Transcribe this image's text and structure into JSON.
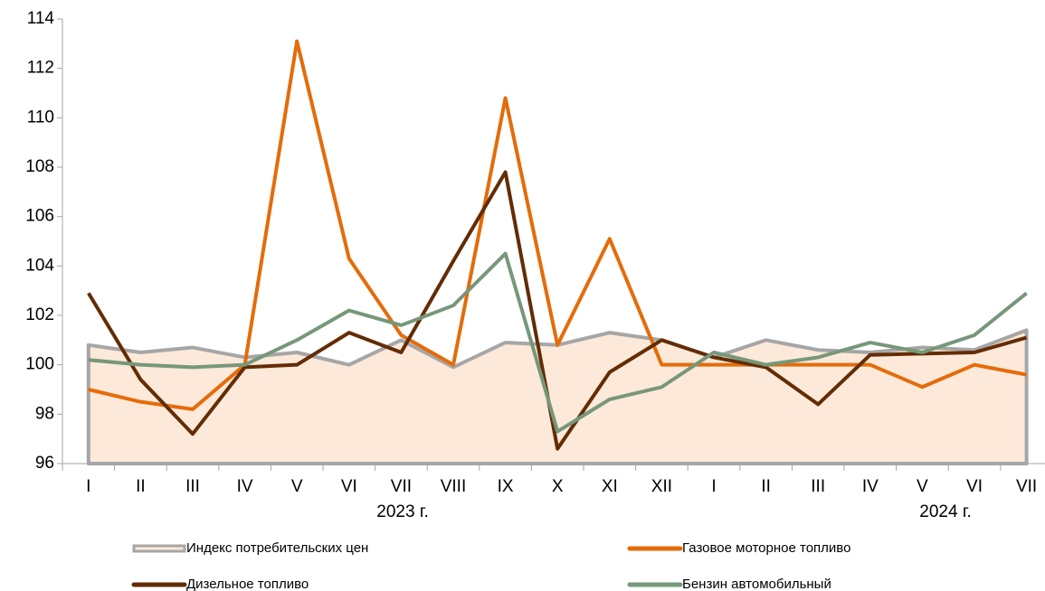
{
  "chart_data": {
    "type": "line",
    "categories": [
      "I",
      "II",
      "III",
      "IV",
      "V",
      "VI",
      "VII",
      "VIII",
      "IX",
      "X",
      "XI",
      "XII",
      "I",
      "II",
      "III",
      "IV",
      "V",
      "VI",
      "VII"
    ],
    "year_labels": [
      "2023 г.",
      "2024 г."
    ],
    "ylim": [
      96,
      114
    ],
    "yticks": [
      96,
      98,
      100,
      102,
      104,
      106,
      108,
      110,
      112,
      114
    ],
    "grid": false,
    "series": [
      {
        "name": "Индекс потребительских цен",
        "color": "#a6a6a6",
        "area_color": "#fde9d9",
        "values": [
          100.8,
          100.5,
          100.7,
          100.3,
          100.5,
          100.0,
          101.0,
          99.9,
          100.9,
          100.8,
          101.3,
          101.0,
          100.3,
          101.0,
          100.6,
          100.5,
          100.7,
          100.6,
          101.4
        ]
      },
      {
        "name": "Газовое моторное топливо",
        "color": "#e46c0a",
        "values": [
          99.0,
          98.5,
          98.2,
          100.0,
          113.1,
          104.3,
          101.2,
          100.0,
          110.8,
          100.8,
          105.1,
          100.0,
          100.0,
          100.0,
          100.0,
          100.0,
          99.1,
          100.0,
          99.6
        ]
      },
      {
        "name": "Дизельное топливо",
        "color": "#632c04",
        "values": [
          102.9,
          99.4,
          97.2,
          99.9,
          100.0,
          101.3,
          100.5,
          104.2,
          107.8,
          96.6,
          99.7,
          101.0,
          100.3,
          99.9,
          98.4,
          100.4,
          100.45,
          100.5,
          101.1
        ]
      },
      {
        "name": "Бензин автомобильный",
        "color": "#77977a",
        "values": [
          100.2,
          100.0,
          99.9,
          100.0,
          101.0,
          102.2,
          101.6,
          102.4,
          104.5,
          97.3,
          98.6,
          99.1,
          100.5,
          100.0,
          100.3,
          100.9,
          100.5,
          101.2,
          102.9
        ]
      }
    ]
  }
}
